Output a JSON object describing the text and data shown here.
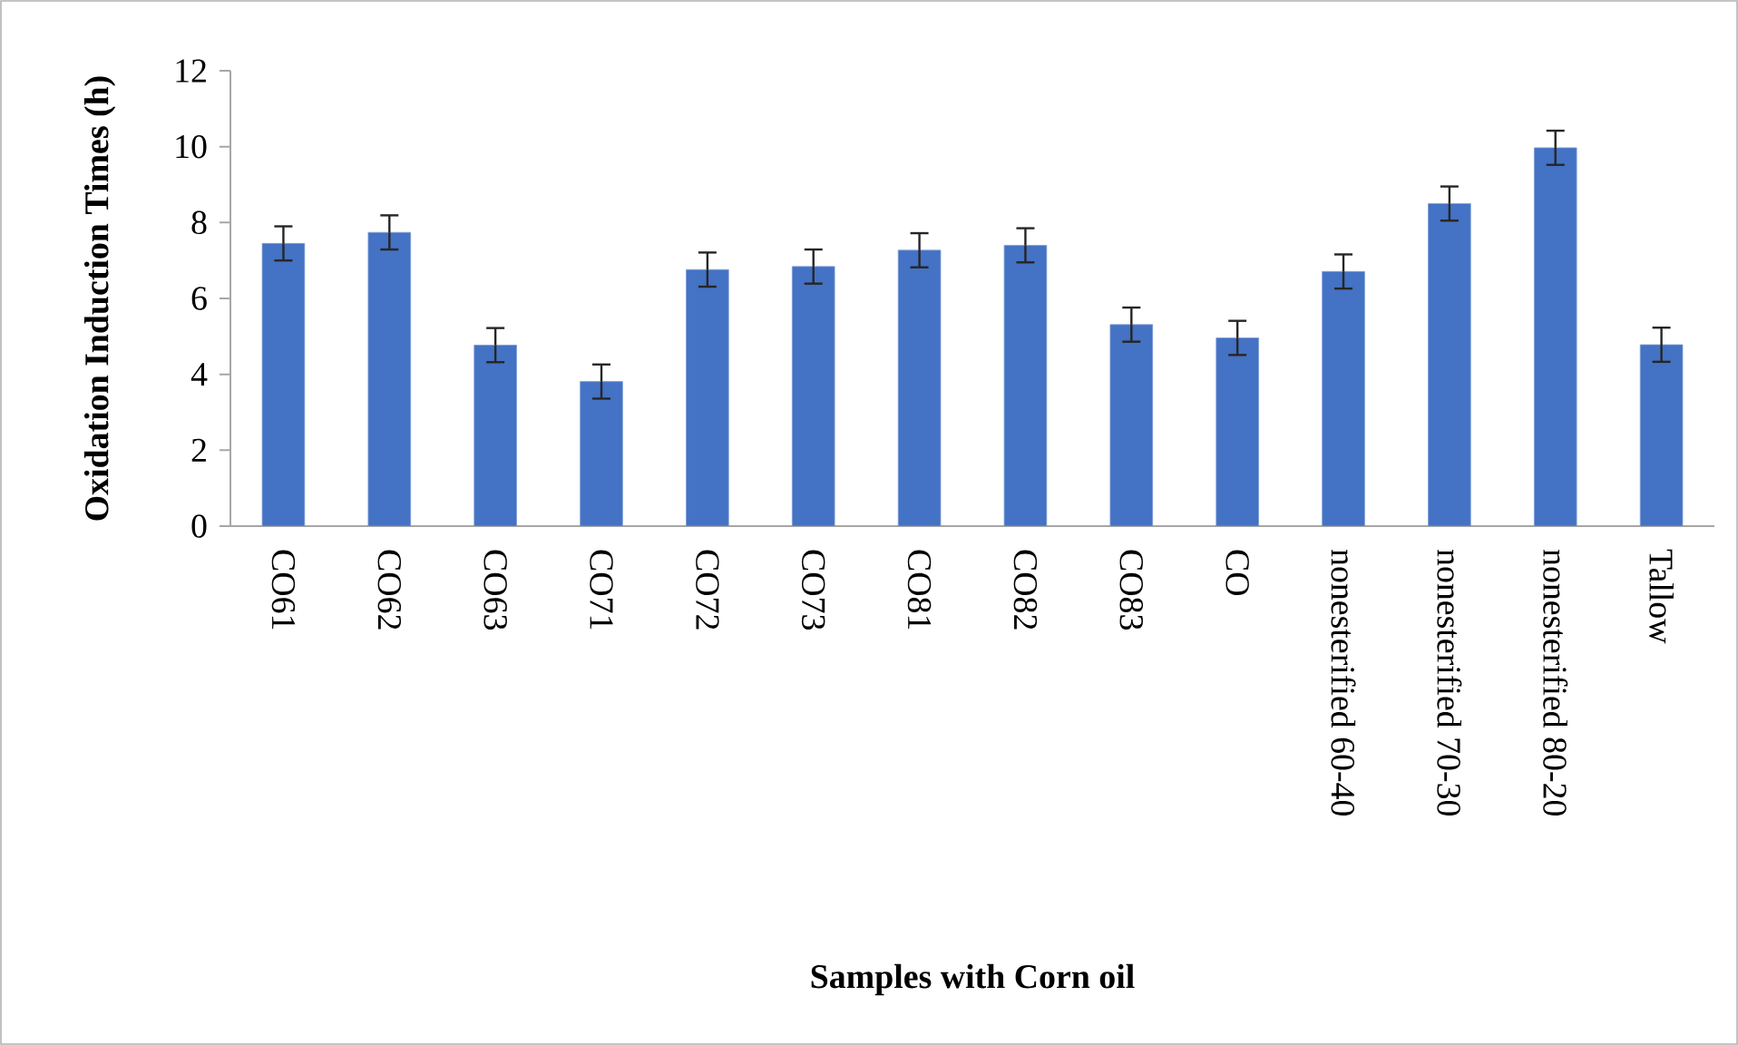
{
  "chart_data": {
    "type": "bar",
    "xlabel": "Samples with Corn oil",
    "ylabel": "Oxidation Induction Times (h)",
    "categories": [
      "CO61",
      "CO62",
      "CO63",
      "CO71",
      "CO72",
      "CO73",
      "CO81",
      "CO82",
      "CO83",
      "CO",
      "nonesterified 60-40",
      "nonesterified 70-30",
      "nonesterified 80-20",
      "Tallow"
    ],
    "values": [
      7.45,
      7.74,
      4.77,
      3.81,
      6.76,
      6.84,
      7.27,
      7.4,
      5.31,
      4.96,
      6.71,
      8.5,
      9.97,
      4.78
    ],
    "errors": [
      0.45,
      0.45,
      0.45,
      0.45,
      0.45,
      0.45,
      0.45,
      0.45,
      0.45,
      0.45,
      0.45,
      0.45,
      0.45,
      0.45
    ],
    "color": "#4472c4",
    "ylim": [
      0,
      12
    ],
    "yticks": [
      0,
      2,
      4,
      6,
      8,
      10,
      12
    ],
    "grid": false
  }
}
